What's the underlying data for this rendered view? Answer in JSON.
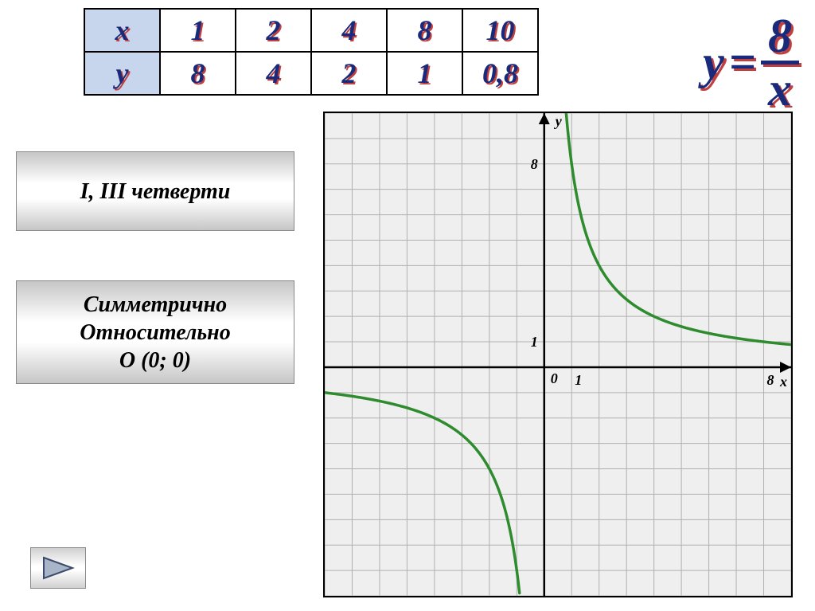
{
  "table": {
    "headers": [
      "x",
      "y"
    ],
    "x_values": [
      "1",
      "2",
      "4",
      "8",
      "10"
    ],
    "y_values": [
      "8",
      "4",
      "2",
      "1",
      "0,8"
    ],
    "header_bg": "#c7d5ed",
    "cell_bg": "#ffffff",
    "border_color": "#000000",
    "value_color": "#1a2a7a",
    "value_shadow": "#c04040",
    "font_size_pt": 28,
    "font_style": "bold italic"
  },
  "formula": {
    "lhs": "y",
    "eq": "=",
    "numerator": "8",
    "denominator": "x",
    "color": "#1a2a7a",
    "shadow": "#c04040",
    "font_size_pt": 46
  },
  "cards": {
    "card1": "I, III четверти",
    "card2_line1": "Симметрично",
    "card2_line2": "Относительно",
    "card2_line3": "O (0; 0)",
    "bg_gradient": [
      "#c6c6c6",
      "#ffffff",
      "#ffffff",
      "#c6c6c6"
    ],
    "text_color": "#000000",
    "font_size_pt": 22,
    "font_style": "bold italic"
  },
  "nav": {
    "triangle_fill": "#a8b4c8",
    "triangle_stroke": "#3b4a6b"
  },
  "chart": {
    "type": "line",
    "function": "y = 8 / x",
    "xlim": [
      -8,
      9
    ],
    "ylim": [
      -9,
      10
    ],
    "grid_step": 1,
    "axis_labels": {
      "x": "x",
      "y": "y",
      "origin": "0"
    },
    "tick_labels": {
      "x": [
        1,
        8
      ],
      "y": [
        1,
        8
      ]
    },
    "background_color": "#efefef",
    "grid_color": "#b0b0b0",
    "grid_width": 1,
    "axis_color": "#000000",
    "axis_width": 2.5,
    "curve_color": "#2e8b2e",
    "curve_width": 3.5,
    "label_color": "#000000",
    "label_fontsize": 18,
    "label_fontstyle": "bold italic"
  }
}
